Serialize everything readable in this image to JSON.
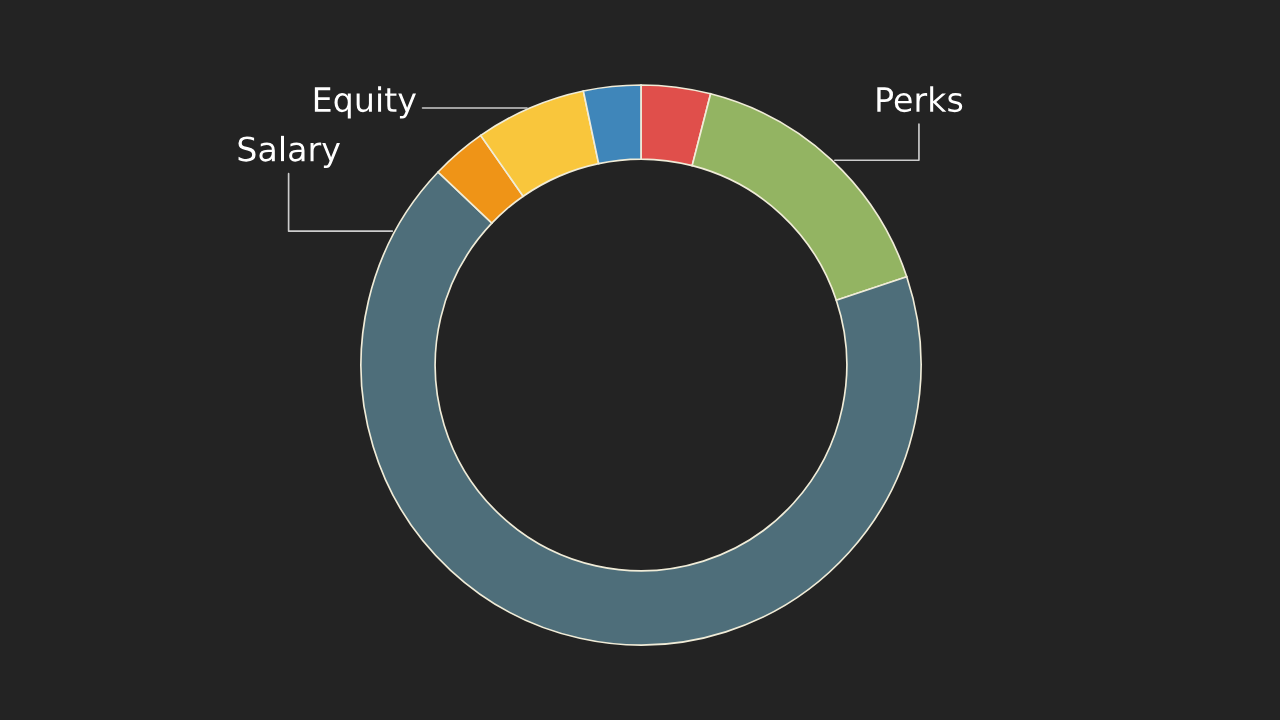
{
  "chart_data": {
    "type": "donut",
    "categories": [
      null,
      "Perks",
      "Salary",
      null,
      "Equity",
      null
    ],
    "values": [
      4.0,
      15.9,
      67.2,
      3.2,
      6.4,
      3.3
    ],
    "colors": [
      "#e04f4b",
      "#93b462",
      "#4e6e7a",
      "#ef9417",
      "#f9c63c",
      "#3f86ba"
    ]
  }
}
